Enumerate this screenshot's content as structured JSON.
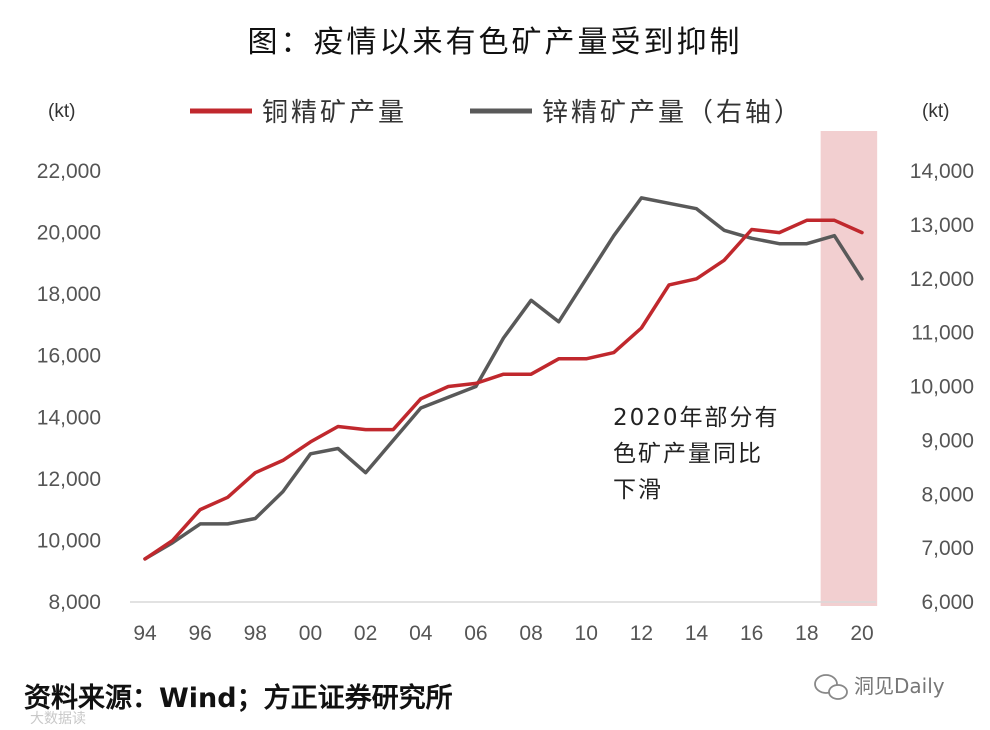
{
  "title": "图：疫情以来有色矿产量受到抑制",
  "source": "资料来源：Wind；方正证券研究所",
  "watermark": {
    "main": "洞见Daily",
    "faint": "大数据读"
  },
  "chart_data": {
    "type": "line",
    "left_unit": "(kt)",
    "right_unit": "(kt)",
    "x": [
      "94",
      "95",
      "96",
      "97",
      "98",
      "99",
      "00",
      "01",
      "02",
      "03",
      "04",
      "05",
      "06",
      "07",
      "08",
      "09",
      "10",
      "11",
      "12",
      "13",
      "14",
      "15",
      "16",
      "17",
      "18",
      "19",
      "20"
    ],
    "x_tick_labels": [
      "94",
      "96",
      "98",
      "00",
      "02",
      "04",
      "06",
      "08",
      "10",
      "12",
      "14",
      "16",
      "18",
      "20"
    ],
    "left_axis": {
      "min": 8000,
      "max": 22000,
      "ticks": [
        8000,
        10000,
        12000,
        14000,
        16000,
        18000,
        20000,
        22000
      ],
      "tick_labels": [
        "8,000",
        "10,000",
        "12,000",
        "14,000",
        "16,000",
        "18,000",
        "20,000",
        "22,000"
      ]
    },
    "right_axis": {
      "min": 6000,
      "max": 14000,
      "ticks": [
        6000,
        7000,
        8000,
        9000,
        10000,
        11000,
        12000,
        13000,
        14000
      ],
      "tick_labels": [
        "6,000",
        "7,000",
        "8,000",
        "9,000",
        "10,000",
        "11,000",
        "12,000",
        "13,000",
        "14,000"
      ]
    },
    "series": [
      {
        "name": "铜精矿产量",
        "axis": "left",
        "color": "#c0282d",
        "values": [
          9400,
          10000,
          11000,
          11400,
          12200,
          12600,
          13200,
          13700,
          13600,
          13600,
          14600,
          15000,
          15100,
          15400,
          15400,
          15900,
          15900,
          16100,
          16900,
          18300,
          18500,
          19100,
          20100,
          20000,
          20400,
          20400,
          20000
        ]
      },
      {
        "name": "锌精矿产量（右轴）",
        "axis": "right",
        "color": "#595959",
        "values": [
          6800,
          7100,
          7450,
          7450,
          7550,
          8050,
          8750,
          8850,
          8400,
          9000,
          9600,
          9800,
          10000,
          10900,
          11600,
          11200,
          12000,
          12800,
          13500,
          13400,
          13300,
          12900,
          12750,
          12650,
          12650,
          12800,
          12000
        ]
      }
    ],
    "highlight": {
      "from": "19",
      "to": "20",
      "color": "#f2cfd0"
    },
    "annotation": [
      "2020年部分有",
      "色矿产量同比",
      "下滑"
    ]
  }
}
